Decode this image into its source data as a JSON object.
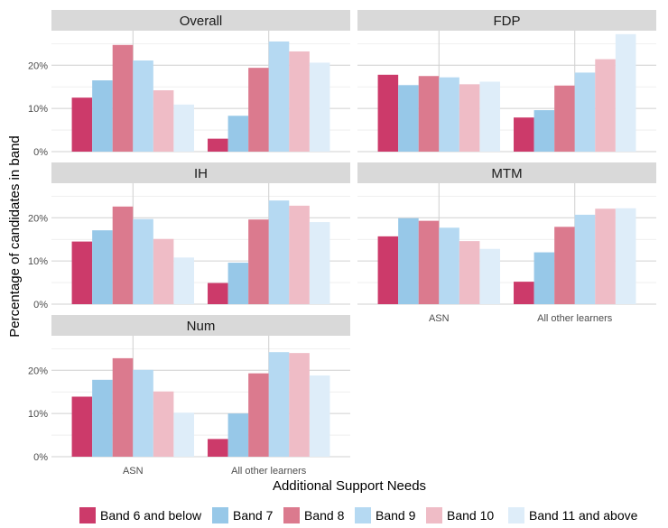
{
  "chart_data": {
    "type": "bar",
    "xlabel": "Additional Support Needs",
    "ylabel": "Percentage of candidates in band",
    "ylim": [
      0,
      28
    ],
    "y_ticks": [
      "0%",
      "10%",
      "20%"
    ],
    "y_tick_values": [
      0,
      10,
      20
    ],
    "categories": [
      "ASN",
      "All other learners"
    ],
    "series_names": [
      "Band 6 and below",
      "Band 7",
      "Band 8",
      "Band 9",
      "Band 10",
      "Band 11 and above"
    ],
    "colors": [
      "#cc3a6a",
      "#97c8e8",
      "#db7a8e",
      "#b5d9f2",
      "#efbcc6",
      "#deedf9"
    ],
    "grid": true,
    "legend_position": "bottom",
    "panels": [
      {
        "title": "Overall",
        "values": [
          [
            12.5,
            16.5,
            24.7,
            21.1,
            14.2,
            10.9
          ],
          [
            3.0,
            8.3,
            19.4,
            25.5,
            23.2,
            20.6
          ]
        ]
      },
      {
        "title": "FDP",
        "values": [
          [
            17.8,
            15.4,
            17.5,
            17.2,
            15.6,
            16.2
          ],
          [
            7.9,
            9.6,
            15.3,
            18.3,
            21.4,
            27.2
          ]
        ]
      },
      {
        "title": "IH",
        "values": [
          [
            14.5,
            17.1,
            22.6,
            19.7,
            15.1,
            10.8
          ],
          [
            4.9,
            9.6,
            19.6,
            24.0,
            22.8,
            19.0
          ]
        ]
      },
      {
        "title": "MTM",
        "values": [
          [
            15.7,
            19.9,
            19.3,
            17.7,
            14.6,
            12.8
          ],
          [
            5.2,
            12.0,
            17.9,
            20.7,
            22.1,
            22.2
          ]
        ]
      },
      {
        "title": "Num",
        "values": [
          [
            13.9,
            17.8,
            22.8,
            20.1,
            15.1,
            10.2
          ],
          [
            4.1,
            10.0,
            19.3,
            24.2,
            24.0,
            18.8
          ]
        ]
      }
    ]
  }
}
